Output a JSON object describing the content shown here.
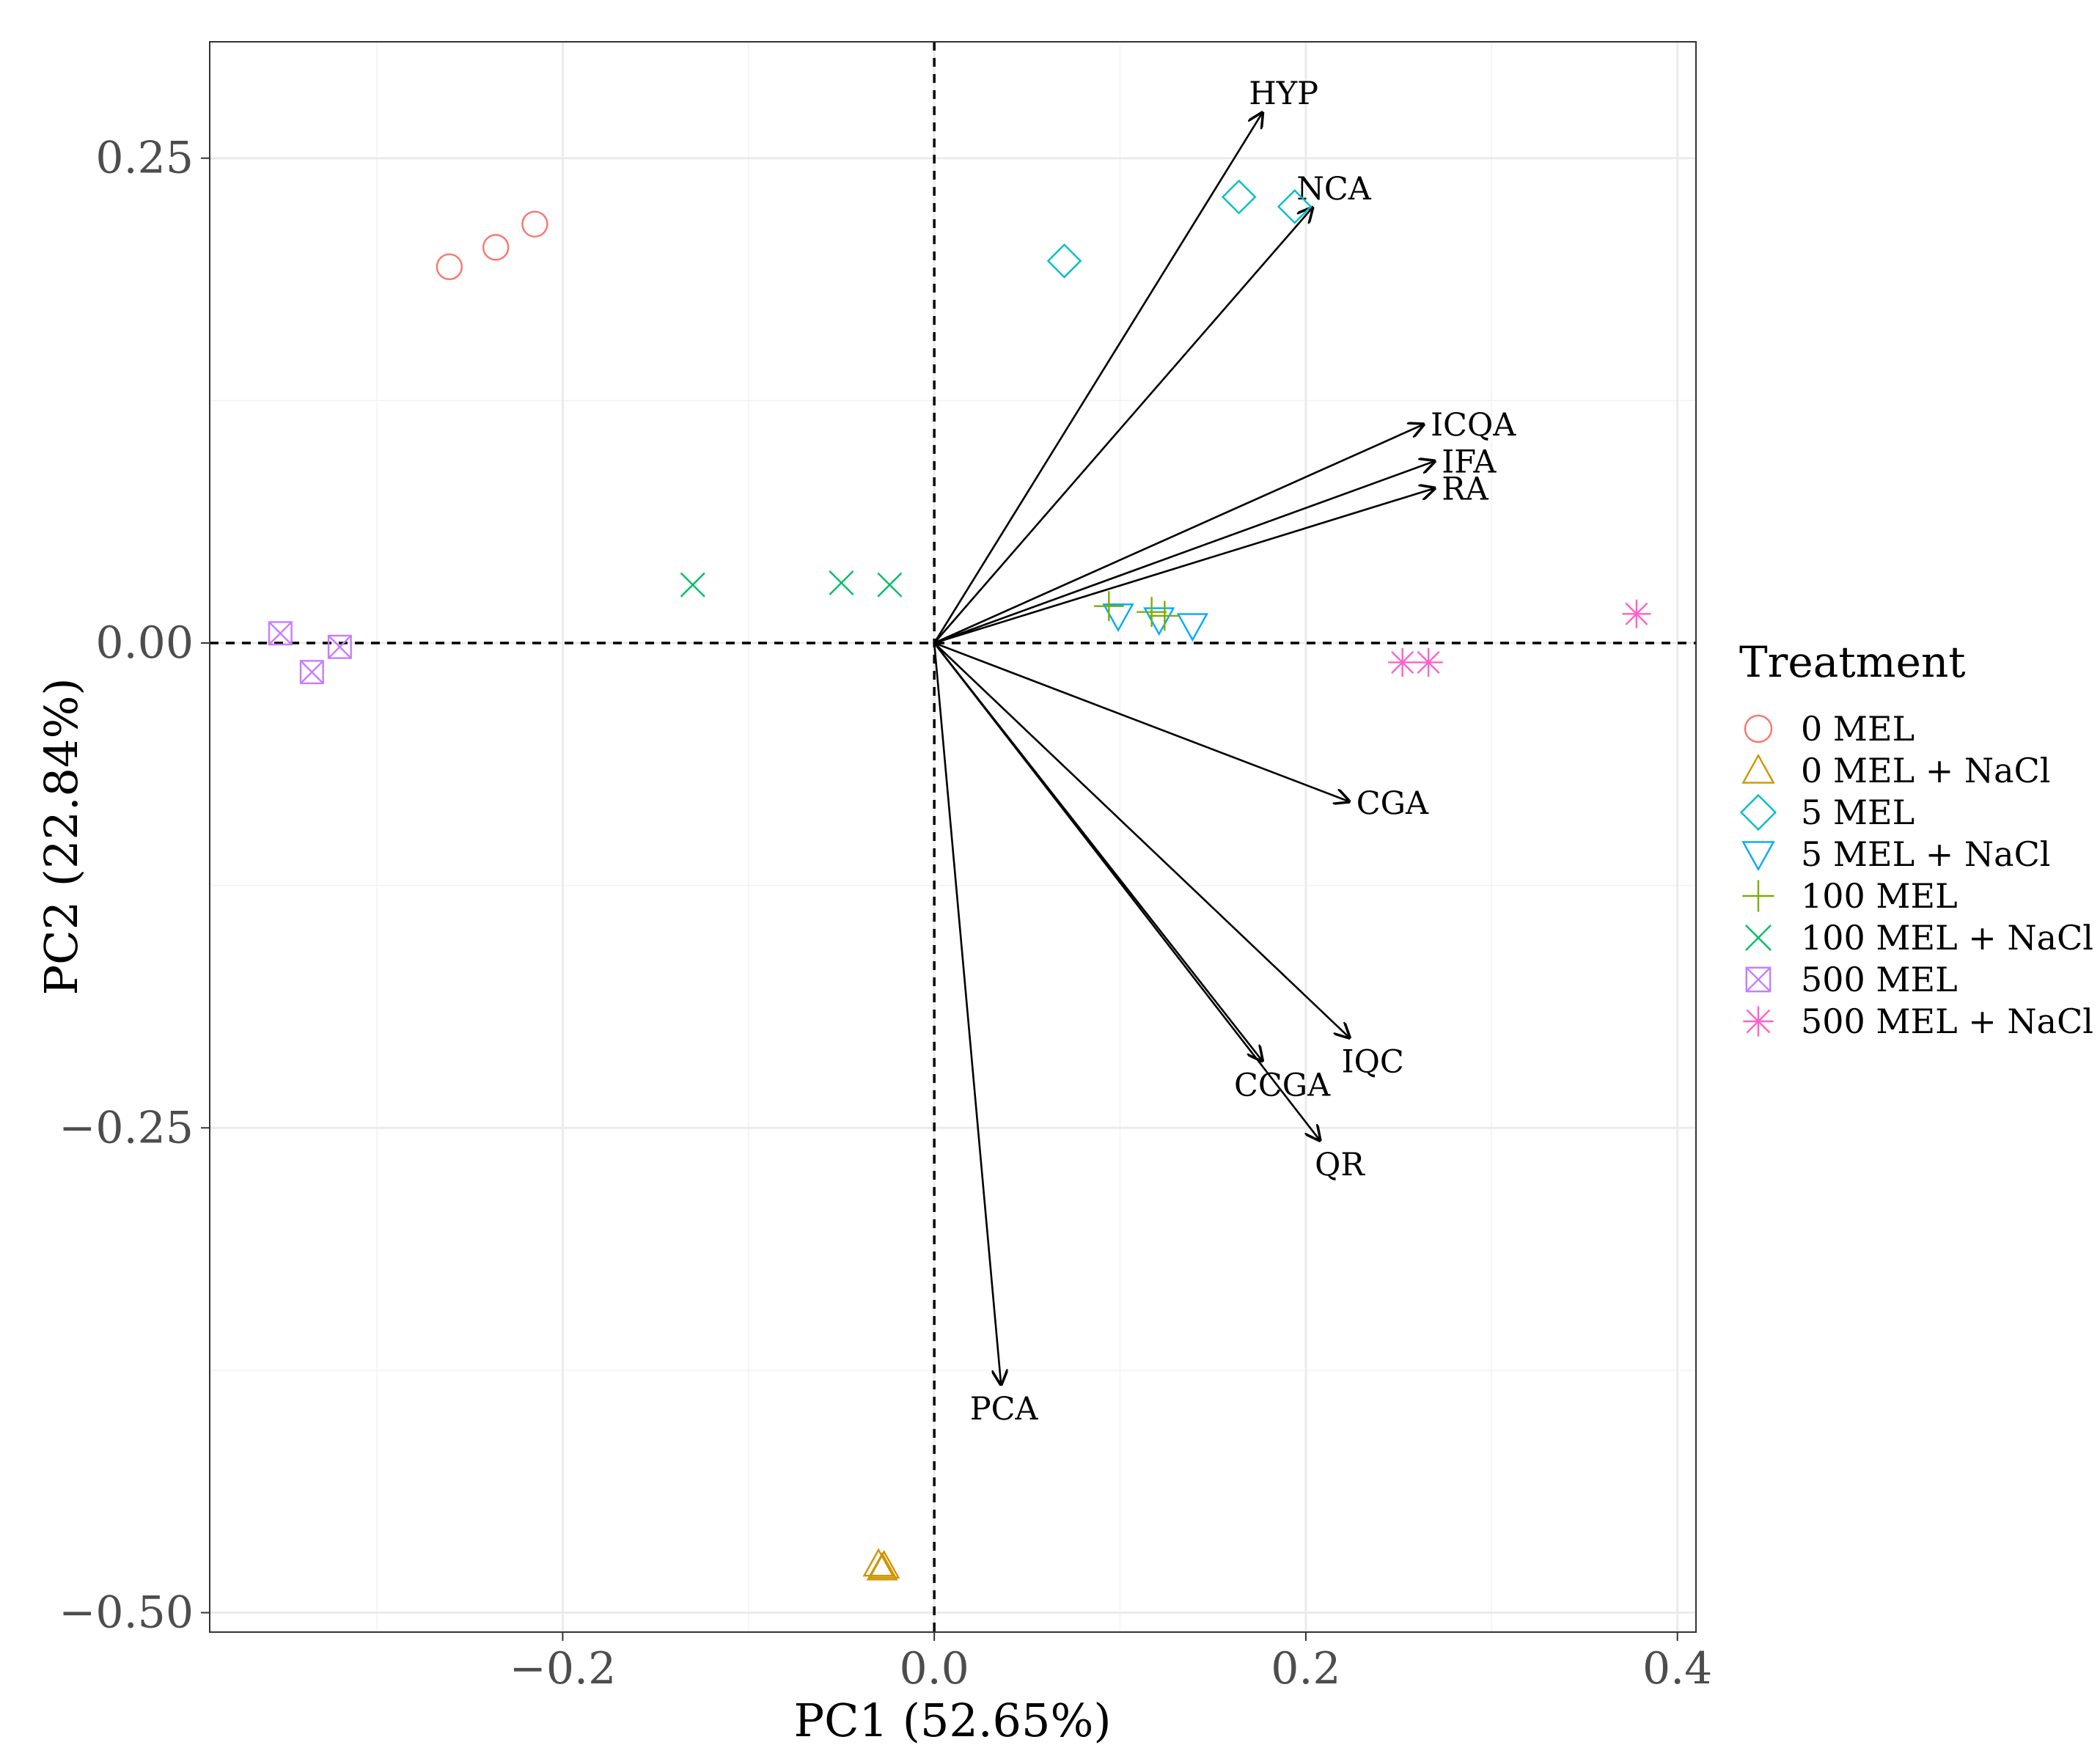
{
  "chart_data": {
    "type": "scatter",
    "subtype": "pca-biplot",
    "title": "",
    "xlabel": "PC1 (52.65%)",
    "ylabel": "PC2 (22.84%)",
    "xlim": [
      -0.39,
      0.41
    ],
    "ylim": [
      -0.51,
      0.31
    ],
    "x_ticks": [
      -0.2,
      0.0,
      0.2,
      0.4
    ],
    "x_tick_labels": [
      "−0.2",
      "0.0",
      "0.2",
      "0.4"
    ],
    "y_ticks": [
      0.25,
      0.0,
      -0.25,
      -0.5
    ],
    "y_tick_labels": [
      "0.25",
      "0.00",
      "−0.25",
      "−0.50"
    ],
    "grid": true,
    "reference_lines": {
      "x": 0,
      "y": 0,
      "style": "dashed"
    },
    "legend": {
      "title": "Treatment",
      "placement": "right",
      "entries": [
        {
          "label": "0 MEL",
          "shape": "circle",
          "color": "#F8766D"
        },
        {
          "label": "0 MEL + NaCl",
          "shape": "triangle",
          "color": "#CD9600"
        },
        {
          "label": "5 MEL",
          "shape": "diamond",
          "color": "#00BFC4"
        },
        {
          "label": "5 MEL + NaCl",
          "shape": "triangle-down",
          "color": "#00A9FF"
        },
        {
          "label": "100 MEL",
          "shape": "plus",
          "color": "#7CAE00"
        },
        {
          "label": "100 MEL + NaCl",
          "shape": "cross",
          "color": "#00BE67"
        },
        {
          "label": "500 MEL",
          "shape": "square-cross",
          "color": "#C77CFF"
        },
        {
          "label": "500 MEL + NaCl",
          "shape": "asterisk",
          "color": "#FF61CC"
        }
      ]
    },
    "series": [
      {
        "name": "0 MEL",
        "points": [
          [
            -0.261,
            0.194
          ],
          [
            -0.236,
            0.204
          ],
          [
            -0.215,
            0.216
          ]
        ]
      },
      {
        "name": "0 MEL + NaCl",
        "points": [
          [
            -0.03,
            -0.475
          ],
          [
            -0.028,
            -0.477
          ],
          [
            -0.027,
            -0.476
          ]
        ]
      },
      {
        "name": "5 MEL",
        "points": [
          [
            0.07,
            0.197
          ],
          [
            0.164,
            0.23
          ],
          [
            0.194,
            0.225
          ]
        ]
      },
      {
        "name": "5 MEL + NaCl",
        "points": [
          [
            0.099,
            0.014
          ],
          [
            0.121,
            0.012
          ],
          [
            0.139,
            0.009
          ]
        ]
      },
      {
        "name": "100 MEL",
        "points": [
          [
            0.094,
            0.019
          ],
          [
            0.117,
            0.016
          ],
          [
            0.124,
            0.014
          ]
        ]
      },
      {
        "name": "100 MEL + NaCl",
        "points": [
          [
            -0.13,
            0.03
          ],
          [
            -0.05,
            0.031
          ],
          [
            -0.024,
            0.03
          ]
        ]
      },
      {
        "name": "500 MEL",
        "points": [
          [
            -0.352,
            0.005
          ],
          [
            -0.335,
            -0.015
          ],
          [
            -0.32,
            -0.002
          ]
        ]
      },
      {
        "name": "500 MEL + NaCl",
        "points": [
          [
            0.252,
            -0.01
          ],
          [
            0.266,
            -0.01
          ],
          [
            0.378,
            0.015
          ]
        ]
      }
    ],
    "loadings": [
      {
        "label": "HYP",
        "x": 0.177,
        "y": 0.274
      },
      {
        "label": "NCA",
        "x": 0.204,
        "y": 0.225
      },
      {
        "label": "ICQA",
        "x": 0.264,
        "y": 0.113
      },
      {
        "label": "IFA",
        "x": 0.27,
        "y": 0.094
      },
      {
        "label": "RA",
        "x": 0.27,
        "y": 0.08
      },
      {
        "label": "CGA",
        "x": 0.224,
        "y": -0.082
      },
      {
        "label": "IQC",
        "x": 0.224,
        "y": -0.204
      },
      {
        "label": "CCGA",
        "x": 0.177,
        "y": -0.216
      },
      {
        "label": "QR",
        "x": 0.208,
        "y": -0.257
      },
      {
        "label": "PCA",
        "x": 0.036,
        "y": -0.383
      }
    ]
  }
}
